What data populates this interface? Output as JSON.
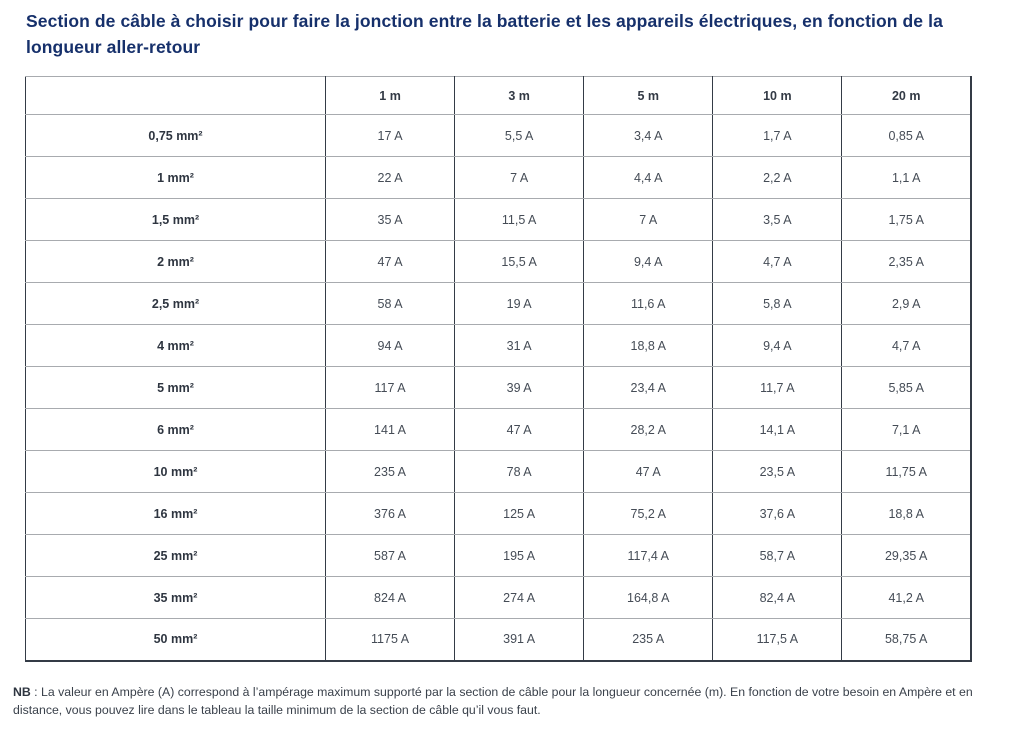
{
  "page": {
    "title": "Section de câble à choisir pour faire la jonction entre la batterie et les appareils électriques, en fonction de la longueur aller-retour",
    "note_label": "NB",
    "note_text": " : La valeur en Ampère (A) correspond à l’ampérage maximum supporté par la section de câble pour la longueur concernée (m). En fonction de votre besoin en Ampère et en distance, vous pouvez lire dans le tableau la taille minimum de la section de câble qu’il vous faut."
  },
  "colors": {
    "title_navy": "#16306b",
    "horizontal_border_gray": "#a8abaf",
    "vertical_border_dark": "#343b46",
    "cell_text": "#454c56",
    "header_text": "#333a45"
  },
  "chart_data": {
    "type": "table",
    "title": "Section de câble à choisir pour faire la jonction entre la batterie et les appareils électriques, en fonction de la longueur aller-retour",
    "columns": [
      "",
      "1 m",
      "3 m",
      "5 m",
      "10 m",
      "20 m"
    ],
    "row_label_unit": "mm²",
    "value_unit": "A",
    "rows": [
      {
        "label": "0,75 mm²",
        "values": [
          "17 A",
          "5,5 A",
          "3,4 A",
          "1,7 A",
          "0,85 A"
        ]
      },
      {
        "label": "1 mm²",
        "values": [
          "22 A",
          "7 A",
          "4,4 A",
          "2,2 A",
          "1,1 A"
        ]
      },
      {
        "label": "1,5 mm²",
        "values": [
          "35 A",
          "11,5 A",
          "7 A",
          "3,5 A",
          "1,75 A"
        ]
      },
      {
        "label": "2 mm²",
        "values": [
          "47 A",
          "15,5 A",
          "9,4 A",
          "4,7 A",
          "2,35 A"
        ]
      },
      {
        "label": "2,5 mm²",
        "values": [
          "58 A",
          "19 A",
          "11,6 A",
          "5,8 A",
          "2,9 A"
        ]
      },
      {
        "label": "4 mm²",
        "values": [
          "94 A",
          "31 A",
          "18,8 A",
          "9,4 A",
          "4,7 A"
        ]
      },
      {
        "label": "5 mm²",
        "values": [
          "117 A",
          "39 A",
          "23,4 A",
          "11,7 A",
          "5,85 A"
        ]
      },
      {
        "label": "6 mm²",
        "values": [
          "141 A",
          "47 A",
          "28,2 A",
          "14,1 A",
          "7,1 A"
        ]
      },
      {
        "label": "10 mm²",
        "values": [
          "235 A",
          "78 A",
          "47 A",
          "23,5 A",
          "11,75 A"
        ]
      },
      {
        "label": "16 mm²",
        "values": [
          "376 A",
          "125 A",
          "75,2 A",
          "37,6 A",
          "18,8 A"
        ]
      },
      {
        "label": "25 mm²",
        "values": [
          "587 A",
          "195 A",
          "117,4 A",
          "58,7 A",
          "29,35 A"
        ]
      },
      {
        "label": "35 mm²",
        "values": [
          "824 A",
          "274 A",
          "164,8 A",
          "82,4 A",
          "41,2 A"
        ]
      },
      {
        "label": "50 mm²",
        "values": [
          "1175 A",
          "391 A",
          "235 A",
          "117,5 A",
          "58,75 A"
        ]
      }
    ]
  }
}
